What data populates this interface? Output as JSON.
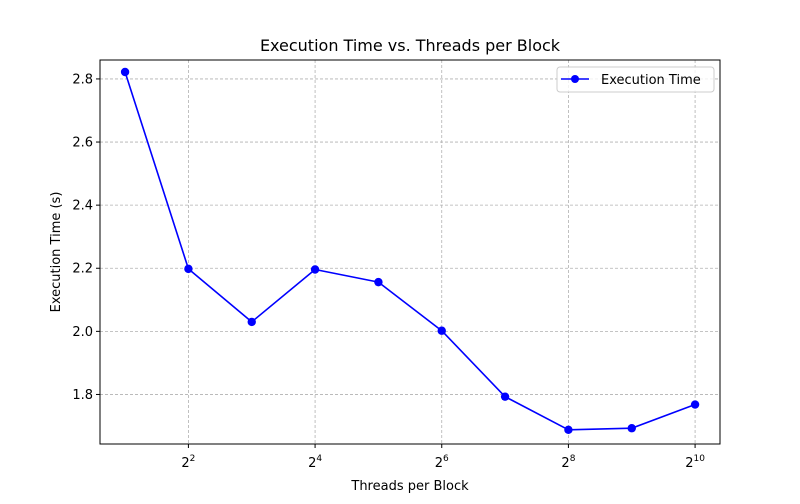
{
  "chart_data": {
    "type": "line",
    "title": "Execution Time vs. Threads per Block",
    "xlabel": "Threads per Block",
    "ylabel": "Execution Time (s)",
    "x_scale": "log2",
    "x": [
      2,
      4,
      8,
      16,
      32,
      64,
      128,
      256,
      512,
      1024
    ],
    "xlim": [
      1.52,
      1345
    ],
    "ylim": [
      1.643,
      2.86
    ],
    "x_ticks": [
      {
        "value": 4,
        "base": "2",
        "exp": "2"
      },
      {
        "value": 16,
        "base": "2",
        "exp": "4"
      },
      {
        "value": 64,
        "base": "2",
        "exp": "6"
      },
      {
        "value": 256,
        "base": "2",
        "exp": "8"
      },
      {
        "value": 1024,
        "base": "2",
        "exp": "10"
      }
    ],
    "y_ticks": [
      {
        "value": 1.8,
        "label": "1.8"
      },
      {
        "value": 2.0,
        "label": "2.0"
      },
      {
        "value": 2.2,
        "label": "2.2"
      },
      {
        "value": 2.4,
        "label": "2.4"
      },
      {
        "value": 2.6,
        "label": "2.6"
      },
      {
        "value": 2.8,
        "label": "2.8"
      }
    ],
    "grid": true,
    "legend_position": "top-right",
    "series": [
      {
        "name": "Execution Time",
        "color": "#0000ff",
        "marker": "circle",
        "values": [
          2.822,
          2.198,
          2.03,
          2.196,
          2.156,
          2.002,
          1.793,
          1.688,
          1.693,
          1.768
        ]
      }
    ]
  }
}
